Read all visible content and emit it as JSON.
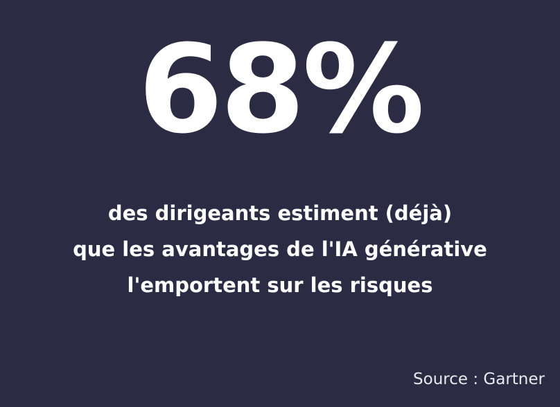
{
  "stat": {
    "value": "68%",
    "lines": [
      "des dirigeants estiment (déjà)",
      "que les avantages de l'IA générative",
      "l'emportent sur les risques"
    ]
  },
  "source": "Source : Gartner",
  "colors": {
    "background": "#2b2b44",
    "text": "#ffffff"
  }
}
